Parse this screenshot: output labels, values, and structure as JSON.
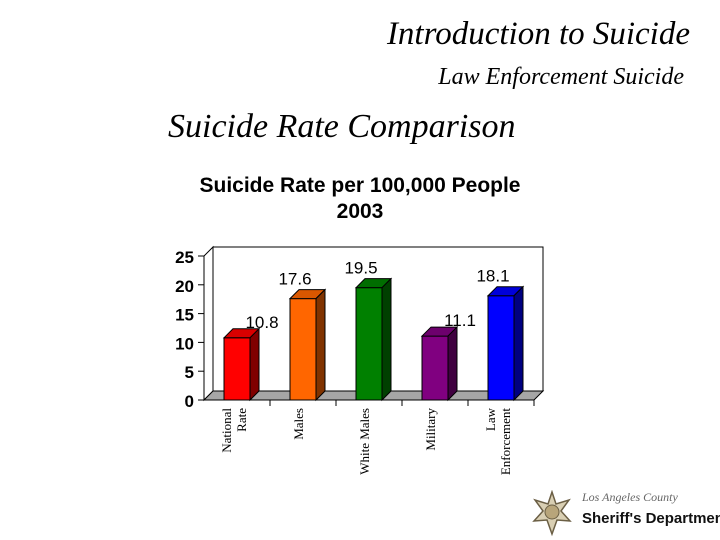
{
  "header": {
    "title": "Introduction to Suicide",
    "subtitle": "Law Enforcement Suicide"
  },
  "slide": {
    "title": "Suicide Rate Comparison"
  },
  "chart_data": {
    "type": "bar",
    "title": "Suicide Rate per 100,000 People",
    "subtitle": "2003",
    "categories": [
      [
        "National",
        "Rate"
      ],
      [
        "Males"
      ],
      [
        "White Males"
      ],
      [
        "Military"
      ],
      [
        "Law",
        "Enforcement"
      ]
    ],
    "values": [
      10.8,
      17.6,
      19.5,
      11.1,
      18.1
    ],
    "value_labels": [
      "10.8",
      "17.6",
      "19.5",
      "11.1",
      "18.1"
    ],
    "colors": [
      "#ff0000",
      "#ff6600",
      "#008000",
      "#800080",
      "#0000ff"
    ],
    "ylim": [
      0,
      25
    ],
    "yticks": [
      0,
      5,
      10,
      15,
      20,
      25
    ],
    "xlabel": "",
    "ylabel": "",
    "grid": false,
    "legend": "none",
    "style": "3d"
  },
  "logo": {
    "county": "Los Angeles County",
    "department": "Sheriff's Department",
    "icon": "sheriff-star-badge-icon"
  }
}
